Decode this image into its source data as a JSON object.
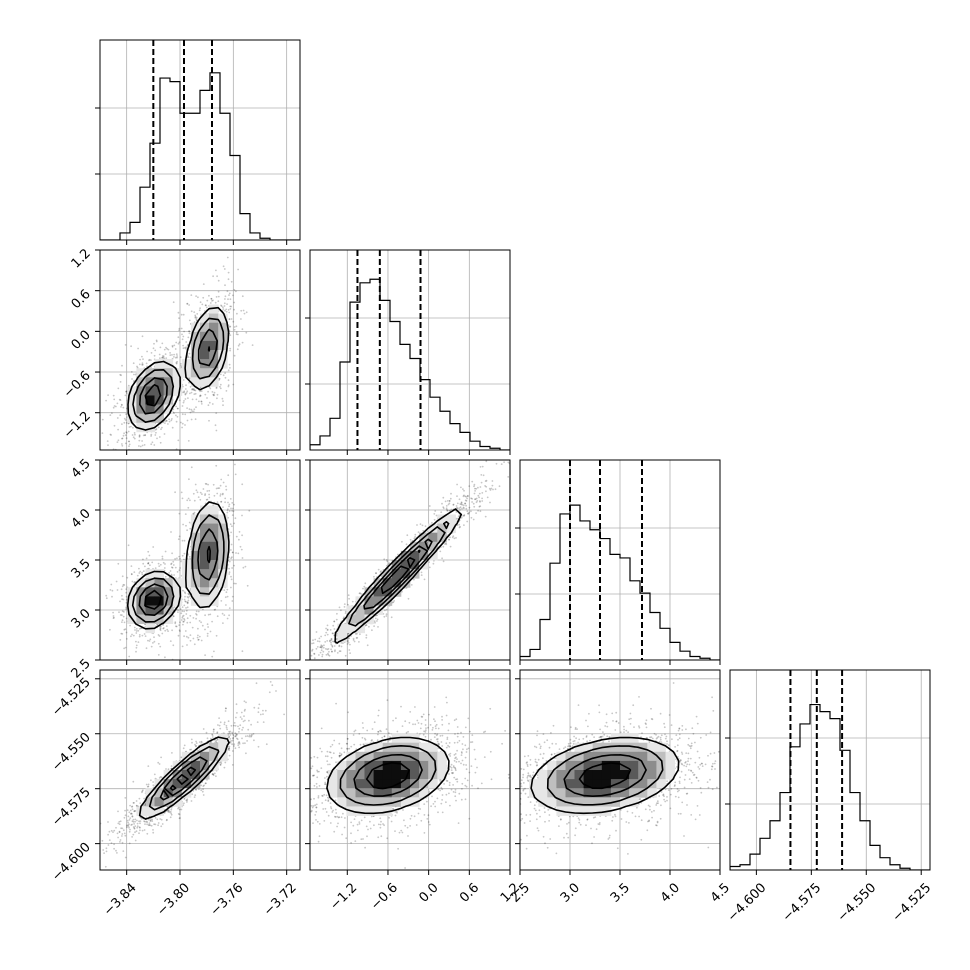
{
  "chart_data": {
    "type": "corner",
    "parameters": [
      {
        "key": "p0",
        "range": [
          -3.86,
          -3.71
        ],
        "ticks": [
          -3.84,
          -3.8,
          -3.76,
          -3.72
        ],
        "tick_labels": [
          "−3.84",
          "−3.80",
          "−3.76",
          "−3.72"
        ],
        "quantiles": [
          -3.82,
          -3.797,
          -3.776
        ]
      },
      {
        "key": "p1",
        "range": [
          -1.75,
          1.2
        ],
        "ticks": [
          -1.2,
          -0.6,
          0.0,
          0.6,
          1.2
        ],
        "tick_labels": [
          "−1.2",
          "−0.6",
          "0.0",
          "0.6",
          "1.2"
        ],
        "quantiles": [
          -1.05,
          -0.72,
          -0.12
        ]
      },
      {
        "key": "p2",
        "range": [
          2.5,
          4.5
        ],
        "ticks": [
          2.5,
          3.0,
          3.5,
          4.0,
          4.5
        ],
        "tick_labels": [
          "2.5",
          "3.0",
          "3.5",
          "4.0",
          "4.5"
        ],
        "quantiles": [
          3.0,
          3.3,
          3.72
        ]
      },
      {
        "key": "p3",
        "range": [
          -4.612,
          -4.521
        ],
        "ticks": [
          -4.6,
          -4.575,
          -4.55,
          -4.525
        ],
        "tick_labels": [
          "−4.600",
          "−4.575",
          "−4.550",
          "−4.525"
        ],
        "quantiles": [
          -4.5845,
          -4.5725,
          -4.561
        ]
      }
    ],
    "diagonal_histograms": [
      [
        0,
        0,
        0.04,
        0.1,
        0.3,
        0.55,
        0.92,
        0.9,
        0.72,
        0.72,
        0.85,
        0.95,
        0.72,
        0.48,
        0.15,
        0.04,
        0.01,
        0,
        0,
        0
      ],
      [
        0.03,
        0.08,
        0.18,
        0.5,
        0.84,
        0.95,
        0.97,
        0.85,
        0.73,
        0.6,
        0.52,
        0.4,
        0.3,
        0.22,
        0.15,
        0.1,
        0.05,
        0.02,
        0.01,
        0
      ],
      [
        0.02,
        0.06,
        0.23,
        0.55,
        0.83,
        0.88,
        0.79,
        0.74,
        0.69,
        0.6,
        0.58,
        0.45,
        0.38,
        0.27,
        0.18,
        0.1,
        0.05,
        0.02,
        0.01,
        0
      ],
      [
        0.02,
        0.03,
        0.09,
        0.18,
        0.28,
        0.44,
        0.7,
        0.83,
        0.94,
        0.9,
        0.86,
        0.68,
        0.44,
        0.28,
        0.14,
        0.07,
        0.03,
        0.01,
        0,
        0
      ]
    ],
    "bivariate_modes": [
      {
        "pair": [
          0,
          1
        ],
        "modes": [
          {
            "center": [
              -3.82,
              -0.95
            ],
            "sd": [
              0.0095,
              0.25
            ],
            "rho": 0.35,
            "w": 0.55
          },
          {
            "center": [
              -3.779,
              -0.25
            ],
            "sd": [
              0.008,
              0.32
            ],
            "rho": 0.35,
            "w": 0.45
          }
        ]
      },
      {
        "pair": [
          0,
          2
        ],
        "modes": [
          {
            "center": [
              -3.82,
              3.1
            ],
            "sd": [
              0.0095,
              0.14
            ],
            "rho": 0.2,
            "w": 0.55
          },
          {
            "center": [
              -3.779,
              3.55
            ],
            "sd": [
              0.008,
              0.28
            ],
            "rho": 0.2,
            "w": 0.45
          }
        ]
      },
      {
        "pair": [
          1,
          2
        ],
        "modes": [
          {
            "center": [
              -0.45,
              3.35
            ],
            "sd": [
              0.48,
              0.34
            ],
            "rho": 0.97,
            "w": 1.0
          }
        ]
      },
      {
        "pair": [
          0,
          3
        ],
        "modes": [
          {
            "center": [
              -3.797,
              -4.57
            ],
            "sd": [
              0.017,
              0.0095
            ],
            "rho": 0.9,
            "w": 1.0
          }
        ]
      },
      {
        "pair": [
          1,
          3
        ],
        "modes": [
          {
            "center": [
              -0.6,
              -4.569
            ],
            "sd": [
              0.45,
              0.0085
            ],
            "rho": 0.3,
            "w": 1.0
          }
        ]
      },
      {
        "pair": [
          2,
          3
        ],
        "modes": [
          {
            "center": [
              3.35,
              -4.569
            ],
            "sd": [
              0.37,
              0.0085
            ],
            "rho": 0.3,
            "w": 1.0
          }
        ]
      }
    ],
    "grid": true
  }
}
